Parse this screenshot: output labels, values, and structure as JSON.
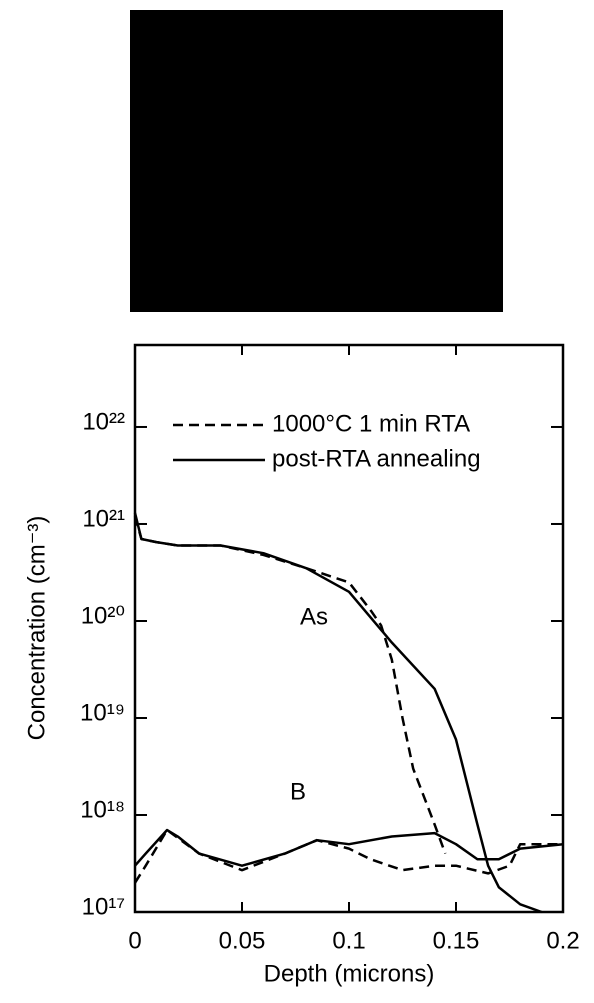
{
  "chart_data": {
    "type": "line",
    "x_label": "Depth  (microns)",
    "y_label": "Concentration  (cm⁻³)",
    "log_y": true,
    "xlim": [
      0,
      0.2
    ],
    "xticks": [
      0,
      0.05,
      0.1,
      0.15,
      0.2
    ],
    "ylim": [
      1e+17,
      7e+22
    ],
    "yticks": [
      {
        "value": 1e+17,
        "label": "10¹⁷"
      },
      {
        "value": 1e+18,
        "label": "10¹⁸"
      },
      {
        "value": 1e+19,
        "label": "10¹⁹"
      },
      {
        "value": 1e+20,
        "label": "10²⁰"
      },
      {
        "value": 1e+21,
        "label": "10²¹"
      },
      {
        "value": 1e+22,
        "label": "10²²"
      }
    ],
    "annotations": [
      "As",
      "B"
    ],
    "series": [
      {
        "name": "1000°C 1 min RTA",
        "color": "#000000",
        "dashed": true,
        "x": [
          0,
          0.003,
          0.01,
          0.02,
          0.04,
          0.06,
          0.08,
          0.1,
          0.11,
          0.115,
          0.12,
          0.125,
          0.13,
          0.14,
          0.145,
          null,
          0,
          0.005,
          0.015,
          0.03,
          0.05,
          0.07,
          0.085,
          0.1,
          0.11,
          0.125,
          0.14,
          0.15,
          0.165,
          0.175,
          0.18,
          0.2
        ],
        "values": [
          1.2e+21,
          7e+20,
          6.5e+20,
          6e+20,
          6e+20,
          4.8e+20,
          3.5e+20,
          2.5e+20,
          1.3e+20,
          9e+19,
          4e+19,
          1e+19,
          3e+18,
          8e+17,
          4e+17,
          null,
          2e+17,
          3e+17,
          7e+17,
          4e+17,
          2.7e+17,
          4e+17,
          5.5e+17,
          4.5e+17,
          3.5e+17,
          2.7e+17,
          3e+17,
          3e+17,
          2.5e+17,
          3e+17,
          5e+17,
          5e+17
        ]
      },
      {
        "name": "post-RTA annealing",
        "color": "#000000",
        "dashed": false,
        "x": [
          0,
          0.003,
          0.01,
          0.02,
          0.04,
          0.06,
          0.08,
          0.1,
          0.12,
          0.14,
          0.15,
          0.16,
          0.165,
          0.17,
          0.18,
          0.19,
          null,
          0,
          0.005,
          0.015,
          0.02,
          0.03,
          0.05,
          0.07,
          0.085,
          0.1,
          0.12,
          0.14,
          0.15,
          0.16,
          0.17,
          0.18,
          0.2
        ],
        "values": [
          1.3e+21,
          7e+20,
          6.5e+20,
          6e+20,
          6e+20,
          5e+20,
          3.5e+20,
          2e+20,
          6e+19,
          2e+19,
          6e+18,
          8e+17,
          3e+17,
          1.8e+17,
          1.2e+17,
          1e+17,
          null,
          3e+17,
          4e+17,
          7e+17,
          6e+17,
          4e+17,
          3e+17,
          4e+17,
          5.5e+17,
          5e+17,
          6e+17,
          6.5e+17,
          5e+17,
          3.5e+17,
          3.5e+17,
          4.5e+17,
          5e+17
        ]
      }
    ]
  }
}
